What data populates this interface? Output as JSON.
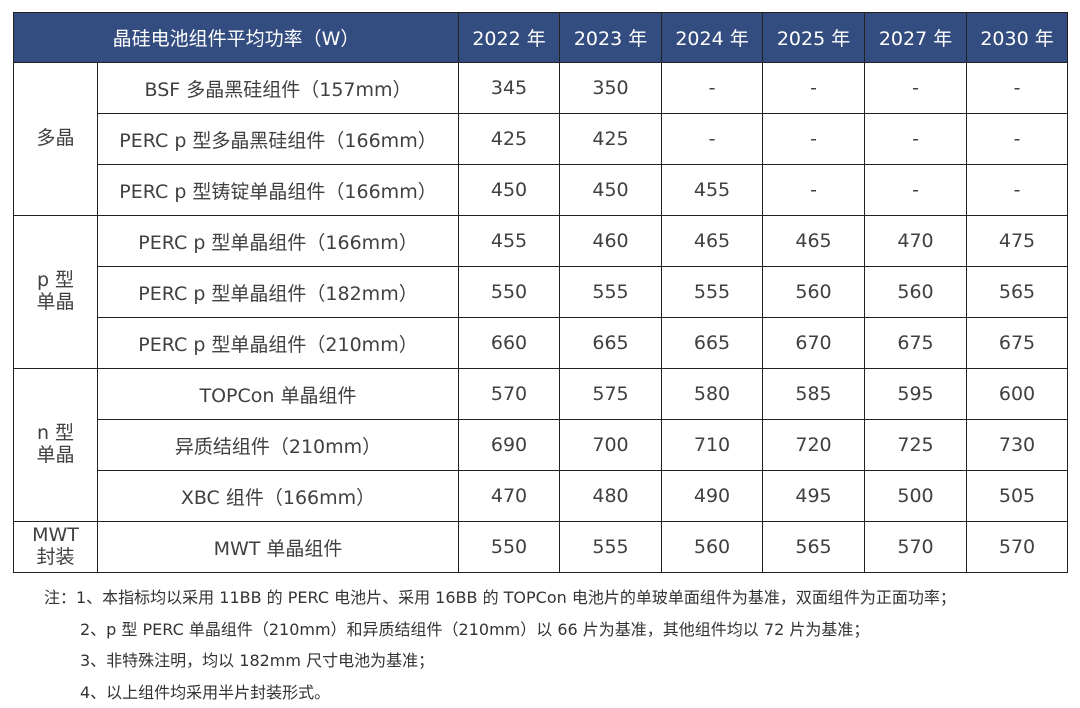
{
  "header": {
    "title": "晶硅电池组件平均功率（W）",
    "years": [
      "2022 年",
      "2023 年",
      "2024 年",
      "2025 年",
      "2027 年",
      "2030 年"
    ]
  },
  "groups": [
    {
      "label": "多晶",
      "rows": [
        {
          "name": "BSF 多晶黑硅组件（157mm）",
          "values": [
            "345",
            "350",
            "-",
            "-",
            "-",
            "-"
          ]
        },
        {
          "name": "PERC p 型多晶黑硅组件（166mm）",
          "values": [
            "425",
            "425",
            "-",
            "-",
            "-",
            "-"
          ]
        },
        {
          "name": "PERC p 型铸锭单晶组件（166mm）",
          "values": [
            "450",
            "450",
            "455",
            "-",
            "-",
            "-"
          ]
        }
      ]
    },
    {
      "label": "p 型\n单晶",
      "rows": [
        {
          "name": "PERC p 型单晶组件（166mm）",
          "values": [
            "455",
            "460",
            "465",
            "465",
            "470",
            "475"
          ]
        },
        {
          "name": "PERC p 型单晶组件（182mm）",
          "values": [
            "550",
            "555",
            "555",
            "560",
            "560",
            "565"
          ]
        },
        {
          "name": "PERC p 型单晶组件（210mm）",
          "values": [
            "660",
            "665",
            "665",
            "670",
            "675",
            "675"
          ]
        }
      ]
    },
    {
      "label": "n 型\n单晶",
      "rows": [
        {
          "name": "TOPCon 单晶组件",
          "values": [
            "570",
            "575",
            "580",
            "585",
            "595",
            "600"
          ]
        },
        {
          "name": "异质结组件（210mm）",
          "values": [
            "690",
            "700",
            "710",
            "720",
            "725",
            "730"
          ]
        },
        {
          "name": "XBC 组件（166mm）",
          "values": [
            "470",
            "480",
            "490",
            "495",
            "500",
            "505"
          ]
        }
      ]
    },
    {
      "label": "MWT\n封装",
      "rows": [
        {
          "name": "MWT 单晶组件",
          "values": [
            "550",
            "555",
            "560",
            "565",
            "570",
            "570"
          ]
        }
      ]
    }
  ],
  "notes": [
    "注：1、本指标均以采用 11BB 的 PERC 电池片、采用 16BB 的 TOPCon 电池片的单玻单面组件为基准，双面组件为正面功率；",
    "2、p 型 PERC 单晶组件（210mm）和异质结组件（210mm）以 66 片为基准，其他组件均以 72 片为基准；",
    "3、非特殊注明，均以 182mm 尺寸电池为基准；",
    "4、以上组件均采用半片封装形式。"
  ]
}
